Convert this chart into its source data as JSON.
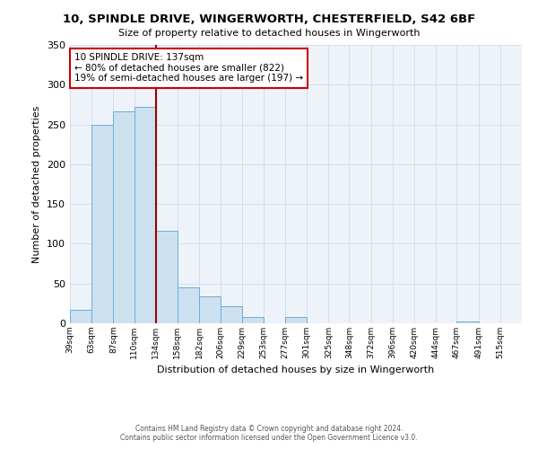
{
  "title": "10, SPINDLE DRIVE, WINGERWORTH, CHESTERFIELD, S42 6BF",
  "subtitle": "Size of property relative to detached houses in Wingerworth",
  "xlabel": "Distribution of detached houses by size in Wingerworth",
  "ylabel": "Number of detached properties",
  "bin_labels": [
    "39sqm",
    "63sqm",
    "87sqm",
    "110sqm",
    "134sqm",
    "158sqm",
    "182sqm",
    "206sqm",
    "229sqm",
    "253sqm",
    "277sqm",
    "301sqm",
    "325sqm",
    "348sqm",
    "372sqm",
    "396sqm",
    "420sqm",
    "444sqm",
    "467sqm",
    "491sqm",
    "515sqm"
  ],
  "bin_edges": [
    39,
    63,
    87,
    110,
    134,
    158,
    182,
    206,
    229,
    253,
    277,
    301,
    325,
    348,
    372,
    396,
    420,
    444,
    467,
    491,
    515
  ],
  "bar_heights": [
    17,
    250,
    267,
    272,
    116,
    45,
    34,
    21,
    8,
    0,
    8,
    0,
    0,
    0,
    0,
    0,
    0,
    0,
    2,
    0,
    0
  ],
  "bar_color": "#cce0f0",
  "bar_edge_color": "#6aaed6",
  "grid_color": "#c8d8e8",
  "bg_color": "#eef3f9",
  "vline_x": 134,
  "vline_color": "#990000",
  "annotation_title": "10 SPINDLE DRIVE: 137sqm",
  "annotation_line1": "← 80% of detached houses are smaller (822)",
  "annotation_line2": "19% of semi-detached houses are larger (197) →",
  "annotation_box_edge": "#cc0000",
  "ylim": [
    0,
    350
  ],
  "yticks": [
    0,
    50,
    100,
    150,
    200,
    250,
    300,
    350
  ],
  "footer1": "Contains HM Land Registry data © Crown copyright and database right 2024.",
  "footer2": "Contains public sector information licensed under the Open Government Licence v3.0."
}
